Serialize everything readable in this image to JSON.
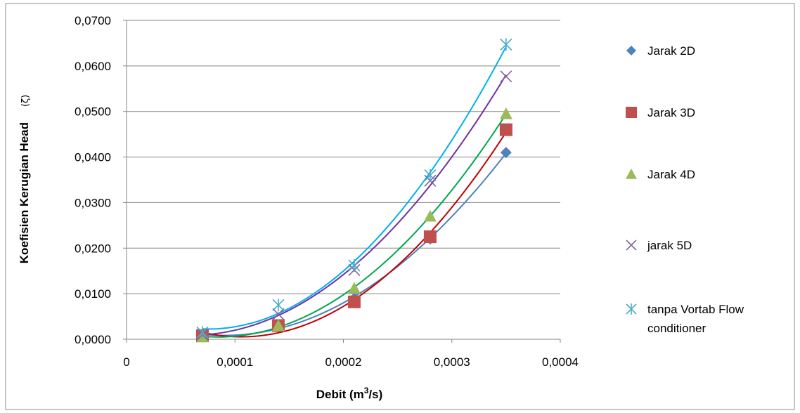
{
  "chart_data": {
    "type": "scatter",
    "xlabel_main": "Debit (m",
    "xlabel_sup": "3",
    "xlabel_end": "/s)",
    "ylabel": "Koefisien Kerugian Head",
    "ylabel_symbol": "(ζ)",
    "xlim": [
      0,
      0.0004
    ],
    "ylim": [
      0,
      0.07
    ],
    "x_ticks": [
      0,
      0.0001,
      0.0002,
      0.0003,
      0.0004
    ],
    "x_tick_labels": [
      "0",
      "0,0001",
      "0,0002",
      "0,0003",
      "0,0004"
    ],
    "y_ticks": [
      0,
      0.01,
      0.02,
      0.03,
      0.04,
      0.05,
      0.06,
      0.07
    ],
    "y_tick_labels": [
      "0,0000",
      "0,0100",
      "0,0200",
      "0,0300",
      "0,0400",
      "0,0500",
      "0,0600",
      "0,0700"
    ],
    "grid": true,
    "legend_position": "right",
    "x": [
      7e-05,
      0.00014,
      0.00021,
      0.00028,
      0.00035
    ],
    "series": [
      {
        "name": "Jarak 2D",
        "marker": "diamond",
        "color": "#4f81bd",
        "trend_color": "#4f81bd",
        "values": [
          0.0008,
          0.003,
          0.009,
          0.022,
          0.041
        ]
      },
      {
        "name": "Jarak 3D",
        "marker": "square",
        "color": "#c0504d",
        "trend_color": "#c00000",
        "values": [
          0.0008,
          0.003,
          0.0082,
          0.0225,
          0.046
        ]
      },
      {
        "name": "Jarak 4D",
        "marker": "triangle",
        "color": "#9bbb59",
        "trend_color": "#00a651",
        "values": [
          0.0005,
          0.003,
          0.0112,
          0.027,
          0.0495
        ]
      },
      {
        "name": "jarak 5D",
        "marker": "x",
        "color": "#8064a2",
        "trend_color": "#7030a0",
        "values": [
          0.001,
          0.0055,
          0.0152,
          0.0348,
          0.0577
        ]
      },
      {
        "name": "tanpa Vortab Flow conditioner",
        "marker": "star",
        "color": "#4bacc6",
        "trend_color": "#00b0f0",
        "values": [
          0.0015,
          0.0075,
          0.0162,
          0.036,
          0.0647
        ]
      }
    ]
  }
}
